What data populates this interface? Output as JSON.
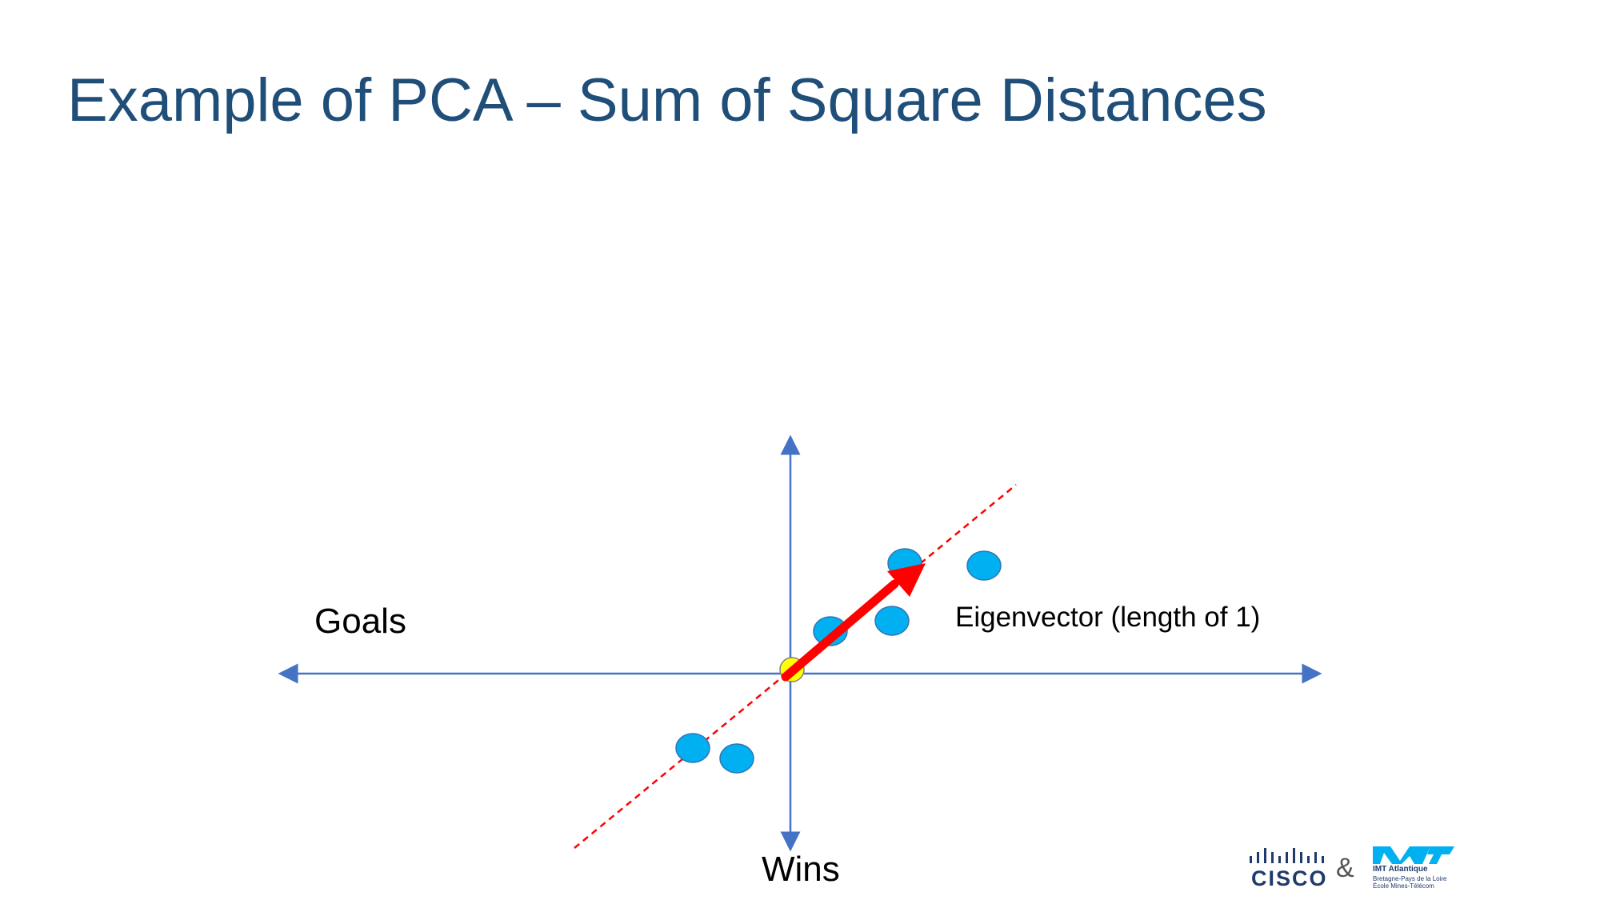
{
  "slide": {
    "title": "Example of PCA – Sum of Square Distances"
  },
  "diagram": {
    "x_axis_label": "Goals",
    "y_axis_label": "Wins",
    "vector_label": "Eigenvector (length of 1)",
    "colors": {
      "title": "#1f4e79",
      "axis": "#4472c4",
      "point_fill": "#00b0f0",
      "point_stroke": "#2f75b5",
      "origin_fill": "#ffff00",
      "eigenvector": "#ff0000",
      "principal_line": "#ff0000"
    }
  },
  "footer": {
    "cisco_logo": "CISCO",
    "ampersand": "&",
    "imt_logo": "IMT Atlantique",
    "imt_subtitle_1": "Bretagne-Pays de la Loire",
    "imt_subtitle_2": "École Mines-Télécom"
  }
}
